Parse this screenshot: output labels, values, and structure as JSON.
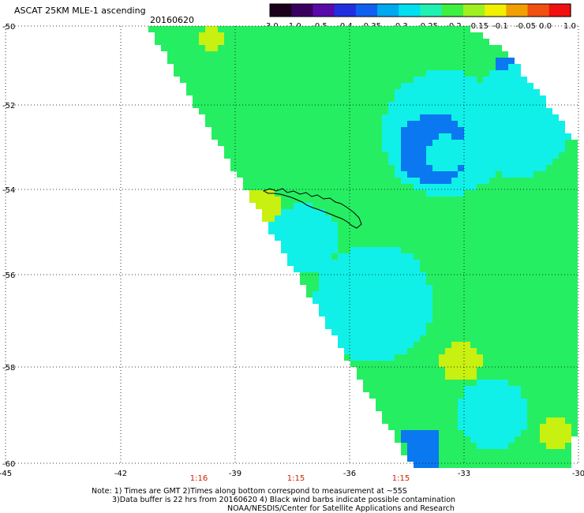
{
  "header": {
    "title": "ASCAT 25KM MLE-1 ascending",
    "date": "20160620"
  },
  "colorbar": {
    "colors": [
      "#1a0018",
      "#3a0060",
      "#5a0aa8",
      "#2030e0",
      "#1060f0",
      "#00a8f0",
      "#00e0f0",
      "#20f0b0",
      "#40f040",
      "#a0f020",
      "#f0f000",
      "#f0a000",
      "#f05010",
      "#f01010"
    ],
    "labels": [
      "-3.0",
      "-1.0",
      "-0.5",
      "-0.4",
      "-0.35",
      "-0.3",
      "-0.25",
      "-0.2",
      "-0.15",
      "-0.1",
      "-0.05",
      "0.0",
      "1.0"
    ]
  },
  "axes": {
    "y_labels": [
      "-50",
      "-52",
      "-54",
      "-56",
      "-58",
      "-60"
    ],
    "x_labels": [
      "-45",
      "-42",
      "-39",
      "-36",
      "-33",
      "-30"
    ],
    "time_labels": [
      "1:16",
      "1:15",
      "1:15"
    ]
  },
  "notes": [
    "Note: 1) Times are GMT 2)Times along bottom correspond to measurement at ~55S",
    "3)Data buffer is 22 hrs from 20160620 4) Black wind barbs indicate possible contamination",
    "NOAA/NESDIS/Center for Satellite Applications and Research"
  ],
  "colors": {
    "swath_base": "#26ee62",
    "cyan": "#10f0e8",
    "blue": "#0a78f0",
    "yellow": "#c8f010",
    "time_label": "#cc2200"
  }
}
